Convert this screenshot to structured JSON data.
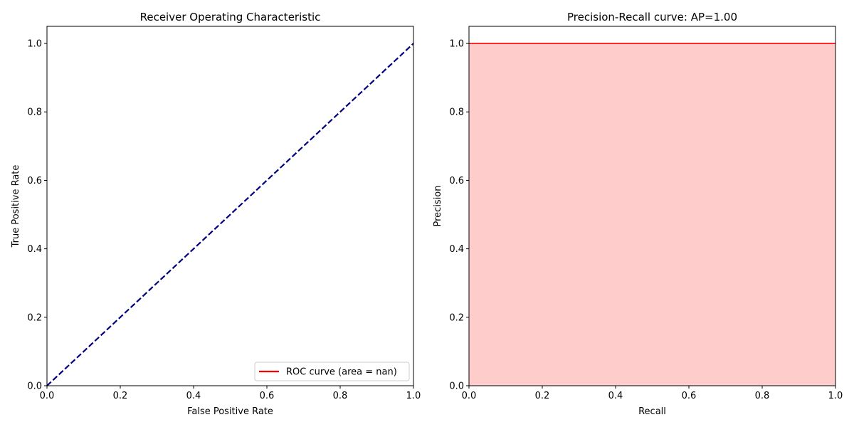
{
  "chart_data": [
    {
      "type": "line",
      "title": "Receiver Operating Characteristic",
      "xlabel": "False Positive Rate",
      "ylabel": "True Positive Rate",
      "xlim": [
        0.0,
        1.0
      ],
      "ylim": [
        0.0,
        1.05
      ],
      "xticks": [
        "0.0",
        "0.2",
        "0.4",
        "0.6",
        "0.8",
        "1.0"
      ],
      "yticks": [
        "0.0",
        "0.2",
        "0.4",
        "0.6",
        "0.8",
        "1.0"
      ],
      "xtick_values": [
        0.0,
        0.2,
        0.4,
        0.6,
        0.8,
        1.0
      ],
      "ytick_values": [
        0.0,
        0.2,
        0.4,
        0.6,
        0.8,
        1.0
      ],
      "grid": false,
      "legend_position": "lower-right",
      "series": [
        {
          "name": "ROC curve (area = nan)",
          "color": "#ff0000",
          "style": "solid",
          "x": [],
          "y": []
        },
        {
          "color": "#000080",
          "style": "dashed",
          "x": [
            0,
            1
          ],
          "y": [
            0,
            1
          ]
        }
      ]
    },
    {
      "type": "area",
      "title": "Precision-Recall curve: AP=1.00",
      "xlabel": "Recall",
      "ylabel": "Precision",
      "xlim": [
        0.0,
        1.0
      ],
      "ylim": [
        0.0,
        1.05
      ],
      "xticks": [
        "0.0",
        "0.2",
        "0.4",
        "0.6",
        "0.8",
        "1.0"
      ],
      "yticks": [
        "0.0",
        "0.2",
        "0.4",
        "0.6",
        "0.8",
        "1.0"
      ],
      "xtick_values": [
        0.0,
        0.2,
        0.4,
        0.6,
        0.8,
        1.0
      ],
      "ytick_values": [
        0.0,
        0.2,
        0.4,
        0.6,
        0.8,
        1.0
      ],
      "grid": false,
      "series": [
        {
          "color": "#ff0000",
          "fill_color": "#ffcccc",
          "style": "step-filled",
          "x": [
            0,
            1
          ],
          "y": [
            1,
            1
          ]
        }
      ]
    }
  ]
}
